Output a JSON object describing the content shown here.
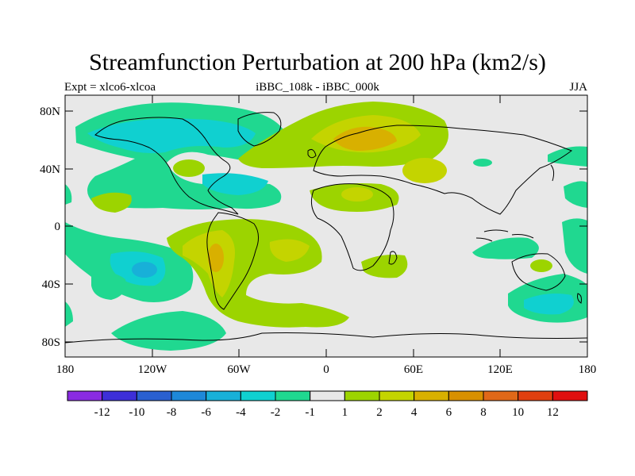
{
  "title": "Streamfunction Perturbation at 200 hPa (km2/s)",
  "left_string": "Expt = xlco6-xlcoa",
  "center_string": "iBBC_108k - iBBC_000k",
  "right_string": "JJA",
  "map": {
    "lat_ticks": [
      {
        "value": 80,
        "label": "80N"
      },
      {
        "value": 40,
        "label": "40N"
      },
      {
        "value": 0,
        "label": "0"
      },
      {
        "value": -40,
        "label": "40S"
      },
      {
        "value": -80,
        "label": "80S"
      }
    ],
    "lon_ticks": [
      {
        "value": -180,
        "label": "180"
      },
      {
        "value": -120,
        "label": "120W"
      },
      {
        "value": -60,
        "label": "60W"
      },
      {
        "value": 0,
        "label": "0"
      },
      {
        "value": 60,
        "label": "60E"
      },
      {
        "value": 120,
        "label": "120E"
      },
      {
        "value": 180,
        "label": "180"
      }
    ]
  },
  "colorbar": {
    "colors": [
      "#8a2be2",
      "#3d2fd8",
      "#2a60d0",
      "#1e88d8",
      "#18b0d8",
      "#10d0d0",
      "#20d890",
      "#e8e8e8",
      "#9cd400",
      "#c4d400",
      "#d8b000",
      "#d89000",
      "#e06818",
      "#e04010",
      "#e01010"
    ],
    "labels": [
      "-12",
      "-10",
      "-8",
      "-6",
      "-4",
      "-2",
      "-1",
      "1",
      "2",
      "4",
      "6",
      "8",
      "10",
      "12"
    ]
  },
  "chart_data": {
    "type": "contour-map",
    "variable": "Streamfunction Perturbation at 200 hPa",
    "units": "km2/s",
    "season": "JJA",
    "experiment": "xlco6-xlcoa",
    "comparison": "iBBC_108k - iBBC_000k",
    "levels": [
      -12,
      -10,
      -8,
      -6,
      -4,
      -2,
      -1,
      1,
      2,
      4,
      6,
      8,
      10,
      12
    ],
    "lon_range": [
      -180,
      180
    ],
    "lat_range": [
      -90,
      90
    ],
    "features": [
      {
        "region": "North America / North Pacific",
        "sign": "negative",
        "approx_min": -4
      },
      {
        "region": "Northern Europe / Scandinavia",
        "sign": "positive",
        "approx_max": 6
      },
      {
        "region": "South Pacific (~30S, 150W)",
        "sign": "negative",
        "approx_min": -6
      },
      {
        "region": "South America",
        "sign": "positive",
        "approx_max": 4
      },
      {
        "region": "Australia / SW Pacific",
        "sign": "negative",
        "approx_min": -4
      },
      {
        "region": "North Africa / Middle East",
        "sign": "positive",
        "approx_max": 2
      }
    ]
  }
}
